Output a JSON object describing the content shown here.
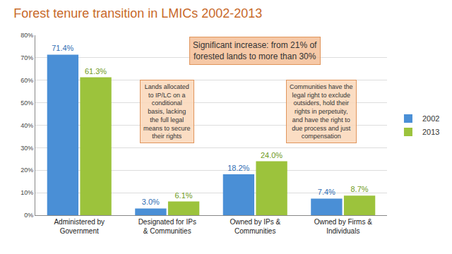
{
  "chart_data": {
    "type": "bar",
    "title": "Forest tenure transition in LMICs 2002-2013",
    "categories": [
      "Administered by Government",
      "Designated for IPs & Communities",
      "Owned by IPs & Communities",
      "Owned by Firms & Individuals"
    ],
    "series": [
      {
        "name": "2002",
        "color": "#4a8fd6",
        "values": [
          71.4,
          3.0,
          18.2,
          7.4
        ],
        "value_labels": [
          "71.4%",
          "3.0%",
          "18.2%",
          "7.4%"
        ]
      },
      {
        "name": "2013",
        "color": "#9cc33c",
        "values": [
          61.3,
          6.1,
          24.0,
          8.7
        ],
        "value_labels": [
          "61.3%",
          "6.1%",
          "24.0%",
          "8.7%"
        ]
      }
    ],
    "ylim": [
      0,
      80
    ],
    "yticks": [
      {
        "value": 0,
        "label": "0%"
      },
      {
        "value": 10,
        "label": "10%"
      },
      {
        "value": 20,
        "label": "20%"
      },
      {
        "value": 30,
        "label": "30%"
      },
      {
        "value": 40,
        "label": "40%"
      },
      {
        "value": 50,
        "label": "50%"
      },
      {
        "value": 60,
        "label": "60%"
      },
      {
        "value": 70,
        "label": "70%"
      },
      {
        "value": 80,
        "label": "80%"
      }
    ],
    "grid": true,
    "legend": "right",
    "data_labels": true,
    "annotations": [
      "Significant increase: from 21% of forested lands to more than 30%",
      "Lands allocated to IP/LC on a conditional basis, lacking the full legal means to secure their rights",
      "Communities have the legal right to exclude outsiders, hold their rights in perpetuity, and have the right to due process and just compensation"
    ]
  }
}
